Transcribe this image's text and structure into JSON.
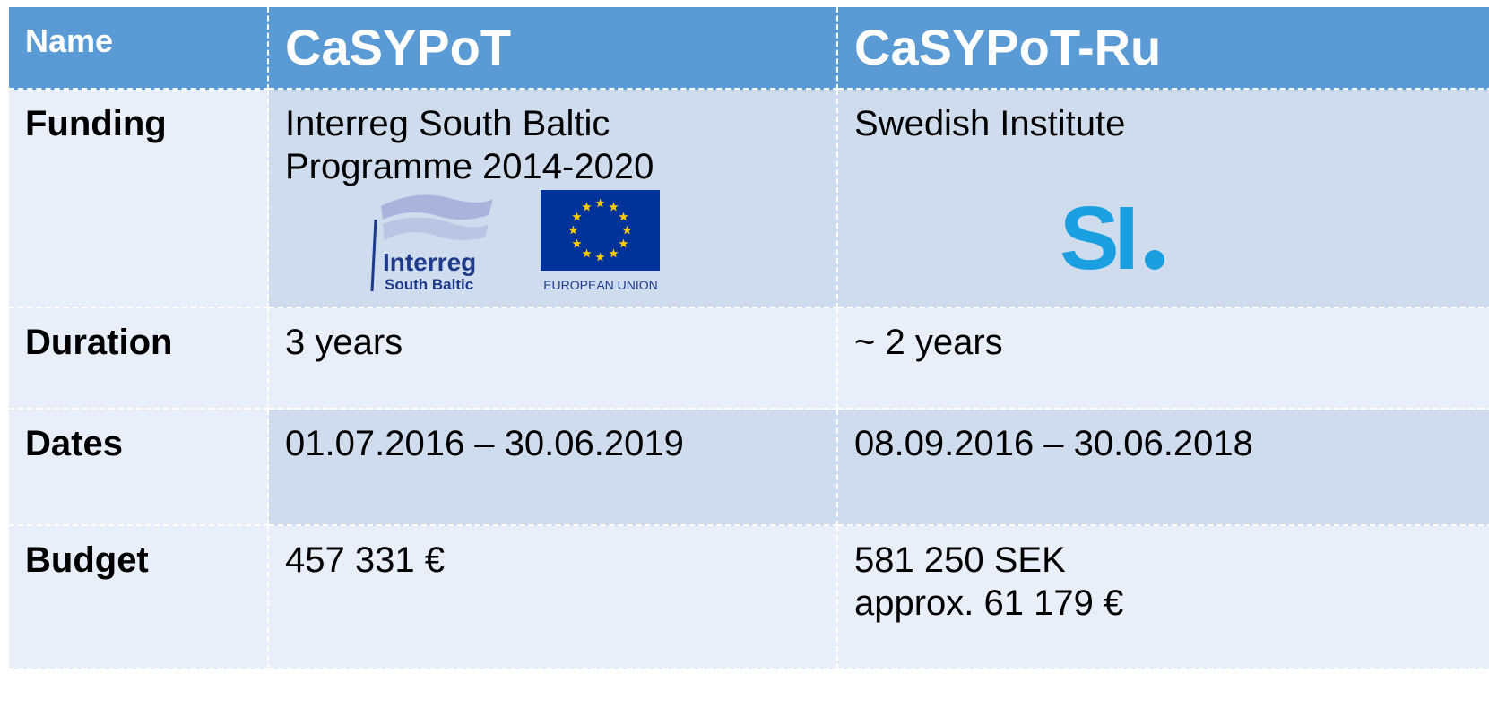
{
  "table": {
    "header": [
      "Name",
      "CaSYPoT",
      "CaSYPoT-Ru"
    ],
    "rows": [
      [
        "Funding",
        "Interreg South Baltic\nProgramme 2014-2020",
        "Swedish Institute"
      ],
      [
        "Duration",
        "3 years",
        "~ 2 years"
      ],
      [
        "Dates",
        "01.07.2016 – 30.06.2019",
        "08.09.2016 – 30.06.2018"
      ],
      [
        "Budget",
        "457 331 €",
        "581 250 SEK\napprox. 61 179 €"
      ]
    ]
  },
  "logos": {
    "interreg": [
      "Interreg",
      "South Baltic"
    ],
    "eu": "EUROPEAN UNION",
    "si": "SI"
  }
}
